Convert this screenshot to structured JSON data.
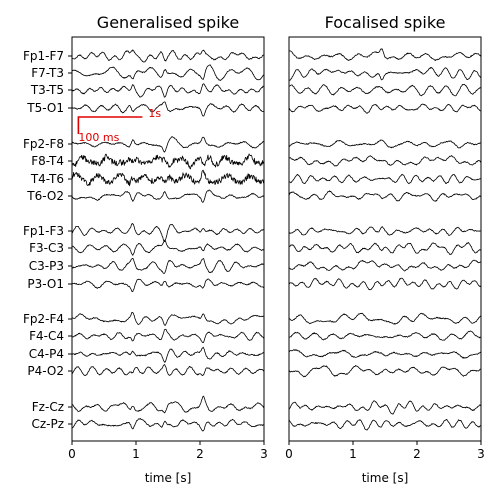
{
  "chart_data": [
    {
      "type": "line",
      "title": "Generalised spike",
      "xlabel": "time [s]",
      "xlim": [
        0,
        3
      ],
      "xticks": [
        "0",
        "1",
        "2",
        "3"
      ],
      "channels": [
        "Fp1-F7",
        "F7-T3",
        "T3-T5",
        "T5-O1",
        "Fp2-F8",
        "F8-T4",
        "T4-T6",
        "T6-O2",
        "Fp1-F3",
        "F3-C3",
        "C3-P3",
        "P3-O1",
        "Fp2-F4",
        "F4-C4",
        "C4-P4",
        "P4-O2",
        "Fz-Cz",
        "Cz-Pz"
      ],
      "spike_times_s": [
        0.95,
        1.45,
        2.05
      ],
      "scale_bar": {
        "time_label": "1s",
        "amplitude_label": "100 ms",
        "time_s": 1.0,
        "color": "#e00000"
      },
      "grid": false
    },
    {
      "type": "line",
      "title": "Focalised spike",
      "xlabel": "time [s]",
      "xlim": [
        0,
        3
      ],
      "xticks": [
        "0",
        "1",
        "2",
        "3"
      ],
      "channels": [
        "Fp1-F7",
        "F7-T3",
        "T3-T5",
        "T5-O1",
        "Fp2-F8",
        "F8-T4",
        "T4-T6",
        "T6-O2",
        "Fp1-F3",
        "F3-C3",
        "C3-P3",
        "P3-O1",
        "Fp2-F4",
        "F4-C4",
        "C4-P4",
        "P4-O2",
        "Fz-Cz",
        "Cz-Pz"
      ],
      "spike_times_s": [
        1.45
      ],
      "grid": false
    }
  ],
  "colors": {
    "trace": "#000000",
    "scale_bar": "#e00000"
  }
}
